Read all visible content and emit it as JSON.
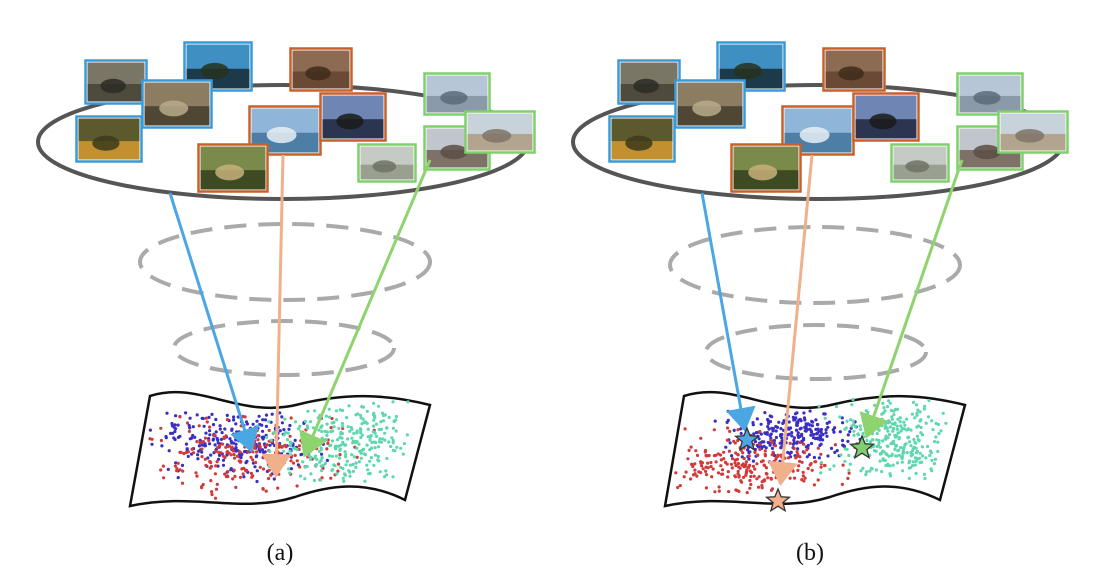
{
  "panels": [
    {
      "id": "a",
      "caption": "(a)",
      "clusters": "mixed",
      "stars": []
    },
    {
      "id": "b",
      "caption": "(b)",
      "clusters": "separated",
      "stars": [
        {
          "color_key": "blue",
          "label_color": "#4fa6e6"
        },
        {
          "color_key": "orange",
          "label_color": "#f3b08a"
        },
        {
          "color_key": "green",
          "label_color": "#7fcf6e"
        }
      ]
    }
  ],
  "colors": {
    "blue_frame": "#3a9ad9",
    "orange_frame": "#c9602c",
    "green_frame": "#7fd06a",
    "blue_arrow": "#4aa7e4",
    "orange_arrow": "#f0b08c",
    "green_arrow": "#8fd36f",
    "dot_blue": "#3a2fc2",
    "dot_red": "#d23a3a",
    "dot_teal": "#5fd7ae",
    "ellipse_solid": "#555555",
    "ellipse_dashed": "#aaaaaa"
  },
  "thumbnail_groups": {
    "blue": [
      "animal-thumbnail",
      "tree-thumbnail",
      "lizard-thumbnail",
      "leopard-thumbnail"
    ],
    "orange": [
      "bird-thumbnail",
      "rain-lake-thumbnail",
      "bear-thumbnail",
      "grass-animal-thumbnail"
    ],
    "green": [
      "tower-thumbnail",
      "city-thumbnail",
      "building-thumbnail",
      "skyline-thumbnail"
    ]
  }
}
